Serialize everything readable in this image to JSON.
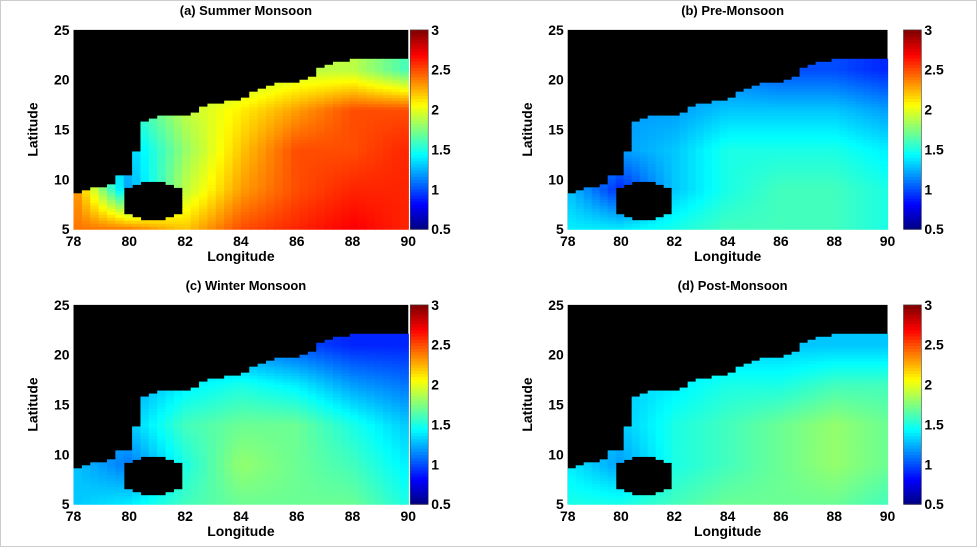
{
  "chart_data": [
    {
      "type": "heatmap",
      "title": "(a) Summer Monsoon",
      "xlabel": "Longitude",
      "ylabel": "Latitude",
      "xlim": [
        78,
        90
      ],
      "ylim": [
        5,
        25
      ],
      "xticks": [
        "78",
        "80",
        "82",
        "84",
        "86",
        "88",
        "90"
      ],
      "yticks": [
        "5",
        "10",
        "15",
        "20",
        "25"
      ],
      "colorbar": {
        "colormap": "jet",
        "range": [
          0.5,
          3
        ],
        "ticks": [
          "0.5",
          "1",
          "1.5",
          "2",
          "2.5",
          "3"
        ]
      },
      "land_color": "#000000",
      "grid_lon": [
        78,
        80,
        82,
        84,
        86,
        88,
        90
      ],
      "grid_lat": [
        5,
        9,
        13,
        17,
        21
      ],
      "values": [
        [
          2.4,
          2.4,
          2.2,
          2.5,
          2.6,
          2.7,
          2.6
        ],
        [
          2.4,
          1.2,
          1.9,
          2.3,
          2.5,
          2.6,
          2.6
        ],
        [
          1.3,
          1.3,
          1.8,
          2.2,
          2.5,
          2.5,
          2.6
        ],
        [
          1.5,
          1.5,
          1.9,
          2.1,
          2.3,
          2.5,
          2.5
        ],
        [
          1.6,
          1.6,
          1.7,
          1.8,
          1.9,
          1.9,
          1.6
        ]
      ]
    },
    {
      "type": "heatmap",
      "title": "(b) Pre-Monsoon",
      "xlabel": "Longitude",
      "ylabel": "Latitude",
      "xlim": [
        78,
        90
      ],
      "ylim": [
        5,
        25
      ],
      "xticks": [
        "78",
        "80",
        "82",
        "84",
        "86",
        "88",
        "90"
      ],
      "yticks": [
        "5",
        "10",
        "15",
        "20",
        "25"
      ],
      "colorbar": {
        "colormap": "jet",
        "range": [
          0.5,
          3
        ],
        "ticks": [
          "0.5",
          "1",
          "1.5",
          "2",
          "2.5",
          "3"
        ]
      },
      "land_color": "#000000",
      "grid_lon": [
        78,
        80,
        82,
        84,
        86,
        88,
        90
      ],
      "grid_lat": [
        5,
        9,
        13,
        17,
        21
      ],
      "values": [
        [
          1.4,
          1.4,
          1.5,
          1.6,
          1.6,
          1.6,
          1.5
        ],
        [
          1.3,
          0.9,
          1.3,
          1.5,
          1.6,
          1.6,
          1.5
        ],
        [
          1.3,
          1.2,
          1.3,
          1.5,
          1.5,
          1.5,
          1.4
        ],
        [
          1.2,
          1.2,
          1.2,
          1.3,
          1.3,
          1.3,
          1.2
        ],
        [
          1.0,
          1.0,
          1.1,
          1.1,
          1.0,
          1.0,
          0.9
        ]
      ]
    },
    {
      "type": "heatmap",
      "title": "(c) Winter Monsoon",
      "xlabel": "Longitude",
      "ylabel": "Latitude",
      "xlim": [
        78,
        90
      ],
      "ylim": [
        5,
        25
      ],
      "xticks": [
        "78",
        "80",
        "82",
        "84",
        "86",
        "88",
        "90"
      ],
      "yticks": [
        "5",
        "10",
        "15",
        "20",
        "25"
      ],
      "colorbar": {
        "colormap": "jet",
        "range": [
          0.5,
          3
        ],
        "ticks": [
          "0.5",
          "1",
          "1.5",
          "2",
          "2.5",
          "3"
        ]
      },
      "land_color": "#000000",
      "grid_lon": [
        78,
        80,
        82,
        84,
        86,
        88,
        90
      ],
      "grid_lat": [
        5,
        9,
        13,
        17,
        21
      ],
      "values": [
        [
          1.3,
          1.4,
          1.6,
          1.7,
          1.7,
          1.7,
          1.5
        ],
        [
          1.3,
          1.1,
          1.5,
          1.8,
          1.7,
          1.6,
          1.4
        ],
        [
          1.2,
          1.3,
          1.6,
          1.7,
          1.7,
          1.5,
          1.3
        ],
        [
          1.2,
          1.2,
          1.4,
          1.5,
          1.4,
          1.2,
          1.1
        ],
        [
          1.0,
          1.0,
          1.1,
          1.1,
          1.0,
          0.9,
          0.9
        ]
      ]
    },
    {
      "type": "heatmap",
      "title": "(d) Post-Monsoon",
      "xlabel": "Longitude",
      "ylabel": "Latitude",
      "xlim": [
        78,
        90
      ],
      "ylim": [
        5,
        25
      ],
      "xticks": [
        "78",
        "80",
        "82",
        "84",
        "86",
        "88",
        "90"
      ],
      "yticks": [
        "5",
        "10",
        "15",
        "20",
        "25"
      ],
      "colorbar": {
        "colormap": "jet",
        "range": [
          0.5,
          3
        ],
        "ticks": [
          "0.5",
          "1",
          "1.5",
          "2",
          "2.5",
          "3"
        ]
      },
      "land_color": "#000000",
      "grid_lon": [
        78,
        80,
        82,
        84,
        86,
        88,
        90
      ],
      "grid_lat": [
        5,
        9,
        13,
        17,
        21
      ],
      "values": [
        [
          1.5,
          1.5,
          1.6,
          1.7,
          1.7,
          1.7,
          1.6
        ],
        [
          1.4,
          1.2,
          1.5,
          1.6,
          1.7,
          1.8,
          1.7
        ],
        [
          1.3,
          1.3,
          1.5,
          1.6,
          1.7,
          1.8,
          1.7
        ],
        [
          1.3,
          1.3,
          1.4,
          1.5,
          1.5,
          1.6,
          1.6
        ],
        [
          1.2,
          1.2,
          1.3,
          1.3,
          1.3,
          1.3,
          1.3
        ]
      ]
    }
  ]
}
